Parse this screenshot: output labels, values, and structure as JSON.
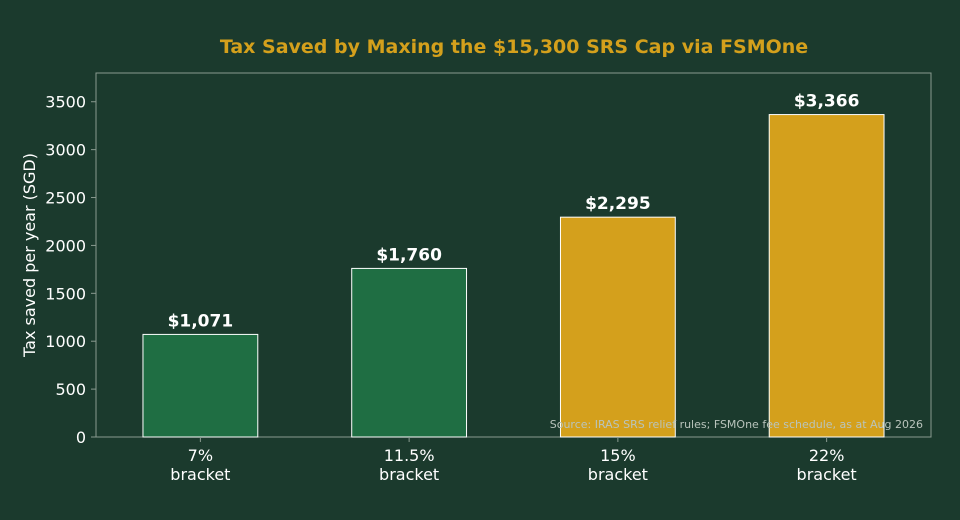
{
  "chart_data": {
    "type": "bar",
    "title": "Tax Saved by Maxing the $15,300 SRS Cap via FSMOne",
    "xlabel": "",
    "ylabel": "Tax saved per year (SGD)",
    "categories": [
      [
        "7%",
        "bracket"
      ],
      [
        "11.5%",
        "bracket"
      ],
      [
        "15%",
        "bracket"
      ],
      [
        "22%",
        "bracket"
      ]
    ],
    "values": [
      1071,
      1760,
      2295,
      3366
    ],
    "data_labels": [
      "$1,071",
      "$1,760",
      "$2,295",
      "$3,366"
    ],
    "ylim": [
      0,
      3800
    ],
    "yticks": [
      0,
      500,
      1000,
      1500,
      2000,
      2500,
      3000,
      3500
    ],
    "grid": false,
    "legend": "none",
    "annotation": "Source: IRAS SRS relief rules; FSMOne fee schedule, as at Aug 2026",
    "colors": {
      "background": "#1b3a2d",
      "title": "#d4a01c",
      "bars": [
        "#1f6e43",
        "#1f6e43",
        "#d4a01c",
        "#d4a01c"
      ],
      "bar_edge": "#ffffff",
      "axis": "#8a9a90",
      "text": "#ffffff",
      "annotation": "#b9c4bc"
    }
  }
}
